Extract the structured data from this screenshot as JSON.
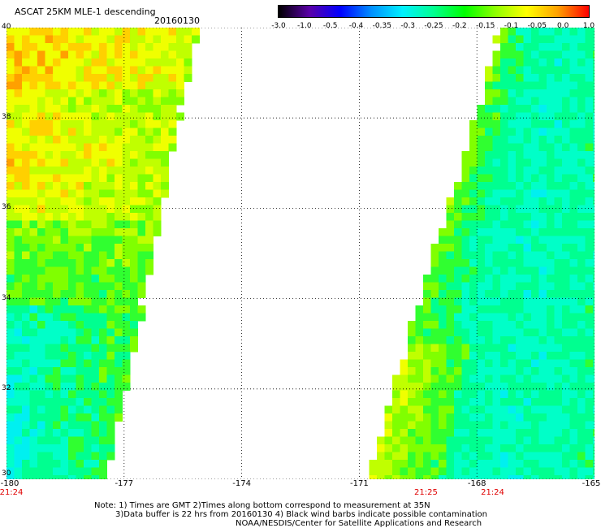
{
  "header": {
    "title": "ASCAT 25KM MLE-1 descending",
    "date": "20160130"
  },
  "colorbar": {
    "ticks": [
      "-3.0",
      "-1.0",
      "-0.5",
      "-0.4",
      "-0.35",
      "-0.3",
      "-0.25",
      "-0.2",
      "-0.15",
      "-0.1",
      "-0.05",
      "0.0",
      "1.0"
    ],
    "colors": [
      "#000000",
      "#5a00a8",
      "#0000ff",
      "#0090ff",
      "#00f0ff",
      "#00ff90",
      "#00ff00",
      "#90ff00",
      "#ffff00",
      "#ffa000",
      "#ff0000"
    ]
  },
  "axes": {
    "lat_ticks": [
      "40",
      "38",
      "36",
      "34",
      "32",
      "30"
    ],
    "lon_ticks": [
      "-180",
      "-177",
      "-174",
      "-171",
      "-168",
      "-165"
    ],
    "lat_range": [
      30,
      40
    ],
    "lon_range": [
      -180,
      -165
    ]
  },
  "times": [
    {
      "label": "21:24",
      "lon": -180
    },
    {
      "label": "21:25",
      "lon": -169.3
    },
    {
      "label": "21:24",
      "lon": -167.6
    }
  ],
  "notes": {
    "line1": "Note: 1) Times are GMT 2)Times along bottom correspond to measurement at 35N",
    "line2": "3)Data buffer is 22 hrs from 20160130 4) Black wind barbs indicate possible contamination",
    "line3": "NOAA/NESDIS/Center for Satellite Applications and Research"
  }
}
